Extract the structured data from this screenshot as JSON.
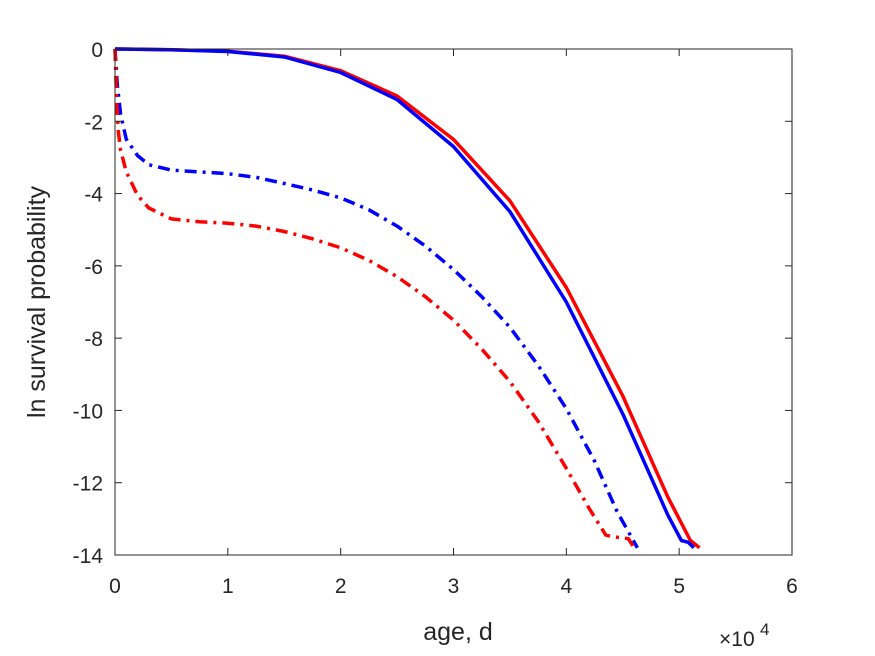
{
  "chart_data": {
    "type": "line",
    "xlabel": "age, d",
    "ylabel": "ln survival probability",
    "x_multiplier_base": "×10",
    "x_multiplier_exp": "4",
    "xlim": [
      0,
      60000
    ],
    "ylim": [
      -14,
      0
    ],
    "xticks": [
      0,
      10000,
      20000,
      30000,
      40000,
      50000,
      60000
    ],
    "xtick_labels": [
      "0",
      "1",
      "2",
      "3",
      "4",
      "5",
      "6"
    ],
    "yticks": [
      0,
      -2,
      -4,
      -6,
      -8,
      -10,
      -12,
      -14
    ],
    "ytick_labels": [
      "0",
      "-2",
      "-4",
      "-6",
      "-8",
      "-10",
      "-12",
      "-14"
    ],
    "grid": false,
    "colors": {
      "red": "#ff0000",
      "blue": "#0000ff",
      "axis": "#262626"
    },
    "series": [
      {
        "color": "#ff0000",
        "style": "solid",
        "x": [
          0,
          5000,
          10000,
          15000,
          20000,
          25000,
          30000,
          35000,
          40000,
          45000,
          49000,
          51000,
          51800
        ],
        "y": [
          0,
          -0.02,
          -0.06,
          -0.2,
          -0.6,
          -1.3,
          -2.5,
          -4.2,
          -6.6,
          -9.6,
          -12.4,
          -13.6,
          -13.8
        ]
      },
      {
        "color": "#0000ff",
        "style": "solid",
        "x": [
          0,
          5000,
          10000,
          15000,
          20000,
          25000,
          30000,
          35000,
          40000,
          45000,
          49000,
          50200,
          50800,
          51300
        ],
        "y": [
          0,
          -0.02,
          -0.07,
          -0.22,
          -0.65,
          -1.4,
          -2.7,
          -4.5,
          -7.0,
          -10.1,
          -12.9,
          -13.6,
          -13.65,
          -13.8
        ]
      },
      {
        "color": "#0000ff",
        "style": "dashdot",
        "x": [
          0,
          200,
          500,
          1000,
          2000,
          3000,
          5000,
          7500,
          10000,
          12500,
          15000,
          17500,
          20000,
          22500,
          25000,
          27500,
          30000,
          32500,
          35000,
          37500,
          40000,
          42500,
          44500,
          46300
        ],
        "y": [
          0,
          -1.0,
          -1.8,
          -2.5,
          -2.95,
          -3.2,
          -3.35,
          -3.4,
          -3.45,
          -3.55,
          -3.72,
          -3.9,
          -4.12,
          -4.45,
          -4.9,
          -5.45,
          -6.1,
          -6.85,
          -7.7,
          -8.75,
          -9.95,
          -11.4,
          -12.8,
          -13.8
        ]
      },
      {
        "color": "#ff0000",
        "style": "dashdot",
        "x": [
          0,
          150,
          300,
          500,
          1000,
          2000,
          3000,
          5000,
          7500,
          10000,
          12500,
          15000,
          17500,
          20000,
          22500,
          25000,
          27500,
          30000,
          32500,
          35000,
          37500,
          40000,
          42000,
          43500,
          44200,
          45500,
          46000
        ],
        "y": [
          0,
          -1.5,
          -2.3,
          -2.8,
          -3.4,
          -4.05,
          -4.4,
          -4.7,
          -4.78,
          -4.82,
          -4.9,
          -5.05,
          -5.25,
          -5.5,
          -5.85,
          -6.3,
          -6.85,
          -7.5,
          -8.3,
          -9.2,
          -10.3,
          -11.6,
          -12.7,
          -13.45,
          -13.5,
          -13.55,
          -13.8
        ]
      }
    ]
  }
}
